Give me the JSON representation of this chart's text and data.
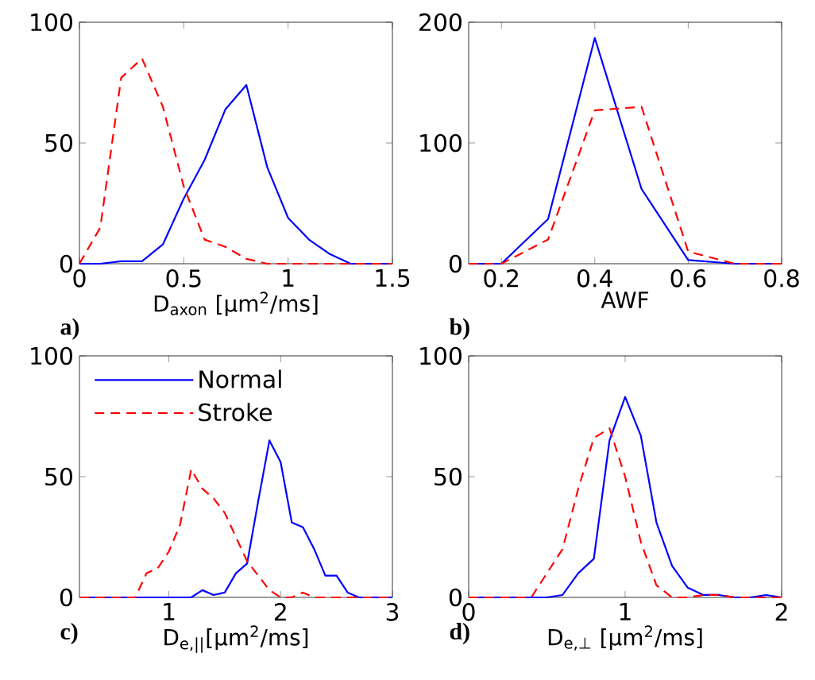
{
  "chart_data": [
    {
      "type": "line",
      "xlabel": "D$_{axon}$ [μm$^{2}$/ms]",
      "annotations": [
        "a)"
      ],
      "x": [
        0,
        0.1,
        0.2,
        0.3,
        0.4,
        0.5,
        0.6,
        0.7,
        0.8,
        0.9,
        1.0,
        1.1,
        1.2,
        1.3,
        1.4,
        1.5
      ],
      "xlim": [
        0,
        1.5
      ],
      "ylim": [
        0,
        100
      ],
      "xticks": [
        0,
        0.5,
        1,
        1.5
      ],
      "yticks": [
        0,
        50,
        100
      ],
      "series": [
        {
          "color": "#0000ff",
          "line_style": "solid",
          "values": [
            0,
            0,
            1,
            1,
            8,
            27,
            43,
            64,
            74,
            40,
            19,
            10,
            4,
            0,
            0,
            0
          ]
        },
        {
          "color": "#ff0000",
          "line_style": "dashed",
          "values": [
            0,
            15,
            77,
            85,
            65,
            32,
            10,
            7,
            2,
            0,
            0,
            0,
            0,
            0,
            0,
            0
          ]
        }
      ]
    },
    {
      "type": "line",
      "xlabel": "AWF",
      "annotations": [
        "b)"
      ],
      "x": [
        0.13,
        0.2,
        0.3,
        0.4,
        0.5,
        0.6,
        0.7,
        0.8
      ],
      "xlim": [
        0.13,
        0.8
      ],
      "ylim": [
        0,
        200
      ],
      "xticks": [
        0.2,
        0.4,
        0.6,
        0.8
      ],
      "yticks": [
        0,
        100,
        200
      ],
      "series": [
        {
          "color": "#0000ff",
          "line_style": "solid",
          "values": [
            0,
            0,
            37,
            187,
            62,
            3,
            0,
            0
          ]
        },
        {
          "color": "#ff0000",
          "line_style": "dashed",
          "values": [
            0,
            0,
            20,
            127,
            130,
            10,
            0,
            0
          ]
        }
      ]
    },
    {
      "type": "line",
      "xlabel": "D$_{e,||}$[μm$^{2}$/ms]",
      "annotations": [
        "c)"
      ],
      "legend": "top left",
      "x": [
        0.2,
        0.3,
        0.4,
        0.5,
        0.6,
        0.7,
        0.8,
        0.9,
        1.0,
        1.1,
        1.2,
        1.3,
        1.4,
        1.5,
        1.6,
        1.7,
        1.8,
        1.9,
        2.0,
        2.1,
        2.2,
        2.3,
        2.4,
        2.5,
        2.6,
        2.7,
        2.8,
        2.9,
        3.0
      ],
      "xlim": [
        0.2,
        3
      ],
      "ylim": [
        0,
        100
      ],
      "xticks": [
        1,
        2,
        3
      ],
      "yticks": [
        0,
        50,
        100
      ],
      "series": [
        {
          "name": "Normal",
          "color": "#0000ff",
          "line_style": "solid",
          "values": [
            0,
            0,
            0,
            0,
            0,
            0,
            0,
            0,
            0,
            0,
            0,
            3,
            1,
            2,
            10,
            14,
            40,
            65,
            56,
            31,
            29,
            20,
            9,
            9,
            2,
            0,
            0,
            0,
            0
          ]
        },
        {
          "name": "Stroke",
          "color": "#ff0000",
          "line_style": "dashed",
          "values": [
            0,
            0,
            0,
            0,
            0,
            0,
            10,
            12,
            19,
            30,
            53,
            45,
            41,
            35,
            25,
            15,
            9,
            3,
            0,
            0,
            2,
            0,
            0,
            0,
            0,
            0,
            0,
            0,
            0
          ]
        }
      ]
    },
    {
      "type": "line",
      "xlabel": "D$_{e,⊥}$ [μm$^{2}$/ms]",
      "annotations": [
        "d)"
      ],
      "x": [
        0,
        0.1,
        0.2,
        0.3,
        0.4,
        0.5,
        0.6,
        0.7,
        0.8,
        0.9,
        1.0,
        1.1,
        1.2,
        1.3,
        1.4,
        1.5,
        1.6,
        1.7,
        1.8,
        1.9,
        2.0
      ],
      "xlim": [
        0,
        2
      ],
      "ylim": [
        0,
        100
      ],
      "xticks": [
        0,
        1,
        2
      ],
      "yticks": [
        0,
        50,
        100
      ],
      "series": [
        {
          "color": "#0000ff",
          "line_style": "solid",
          "values": [
            0,
            0,
            0,
            0,
            0,
            0,
            1,
            10,
            16,
            65,
            83,
            67,
            31,
            13,
            4,
            1,
            1,
            0,
            0,
            1,
            0
          ]
        },
        {
          "color": "#ff0000",
          "line_style": "dashed",
          "values": [
            0,
            0,
            0,
            0,
            0,
            10,
            20,
            45,
            66,
            70,
            50,
            23,
            5,
            0,
            0,
            1,
            1,
            0,
            0,
            0,
            0
          ]
        }
      ]
    }
  ]
}
